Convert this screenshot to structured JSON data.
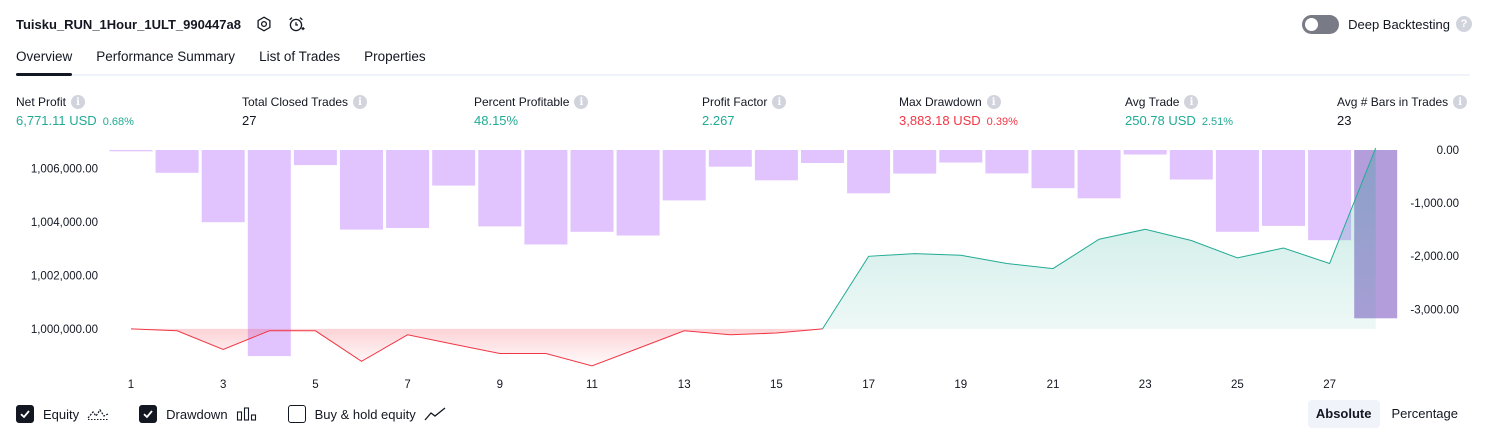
{
  "header": {
    "title": "Tuisku_RUN_1Hour_1ULT_990447a8",
    "deep_backtesting_label": "Deep Backtesting",
    "deep_backtesting_enabled": false
  },
  "tabs": [
    {
      "label": "Overview",
      "active": true
    },
    {
      "label": "Performance Summary",
      "active": false
    },
    {
      "label": "List of Trades",
      "active": false
    },
    {
      "label": "Properties",
      "active": false
    }
  ],
  "stats": {
    "net_profit": {
      "label": "Net Profit",
      "value": "6,771.11 USD",
      "pct": "0.68%"
    },
    "total_closed_trades": {
      "label": "Total Closed Trades",
      "value": "27"
    },
    "percent_profitable": {
      "label": "Percent Profitable",
      "value": "48.15%"
    },
    "profit_factor": {
      "label": "Profit Factor",
      "value": "2.267"
    },
    "max_drawdown": {
      "label": "Max Drawdown",
      "value": "3,883.18 USD",
      "pct": "0.39%"
    },
    "avg_trade": {
      "label": "Avg Trade",
      "value": "250.78 USD",
      "pct": "2.51%"
    },
    "avg_bars": {
      "label": "Avg # Bars in Trades",
      "value": "23"
    }
  },
  "colors": {
    "profit": "#22ab94",
    "loss": "#f23645",
    "drawdown_bar": "#e1c4fd",
    "drawdown_bar_last": "#b39ddb",
    "equity_line_up": "#22ab94",
    "equity_line_down": "#f23645"
  },
  "chart_data": {
    "type": "line",
    "left_axis": {
      "ticks": [
        1000000,
        1002000,
        1004000,
        1006000
      ],
      "tick_labels": [
        "1,000,000.00",
        "1,002,000.00",
        "1,004,000.00",
        "1,006,000.00"
      ],
      "range": [
        998650,
        1006700
      ]
    },
    "right_axis": {
      "ticks": [
        0,
        -1000,
        -2000,
        -3000
      ],
      "tick_labels": [
        "0.00",
        "-1,000.00",
        "-2,000.00",
        "-3,000.00"
      ],
      "range": [
        -4050,
        0
      ]
    },
    "x_ticks": [
      "1",
      "3",
      "5",
      "7",
      "9",
      "11",
      "13",
      "15",
      "17",
      "19",
      "21",
      "23",
      "25",
      "27"
    ],
    "baseline": 1000000,
    "series": [
      {
        "name": "Equity",
        "x": [
          1,
          2,
          3,
          4,
          5,
          6,
          7,
          8,
          9,
          10,
          11,
          12,
          13,
          14,
          15,
          16,
          17,
          18,
          19,
          20,
          21,
          22,
          23,
          24,
          25,
          26,
          27,
          28
        ],
        "values": [
          1000000,
          999930,
          999230,
          999930,
          999930,
          998790,
          999780,
          999430,
          999080,
          999080,
          998620,
          999270,
          999930,
          999780,
          999850,
          1000000,
          1002720,
          1002820,
          1002760,
          1002450,
          1002260,
          1003360,
          1003730,
          1003310,
          1002660,
          1003030,
          1002450,
          1006770
        ]
      },
      {
        "name": "Drawdown",
        "x": [
          1,
          2,
          3,
          4,
          5,
          6,
          7,
          8,
          9,
          10,
          11,
          12,
          13,
          14,
          15,
          16,
          17,
          18,
          19,
          20,
          21,
          22,
          23,
          24,
          25,
          26,
          27,
          28
        ],
        "values": [
          -25,
          -430,
          -1360,
          -3883,
          -285,
          -1500,
          -1470,
          -670,
          -1440,
          -1780,
          -1540,
          -1610,
          -950,
          -315,
          -570,
          -245,
          -815,
          -445,
          -235,
          -440,
          -720,
          -910,
          -85,
          -555,
          -1540,
          -1430,
          -1700,
          -3170
        ]
      }
    ]
  },
  "legend": [
    {
      "label": "Equity",
      "checked": true,
      "icon": "equity-line-icon"
    },
    {
      "label": "Drawdown",
      "checked": true,
      "icon": "drawdown-bars-icon"
    },
    {
      "label": "Buy & hold equity",
      "checked": false,
      "icon": "buyhold-line-icon"
    }
  ],
  "modes": [
    {
      "label": "Absolute",
      "active": true
    },
    {
      "label": "Percentage",
      "active": false
    }
  ]
}
